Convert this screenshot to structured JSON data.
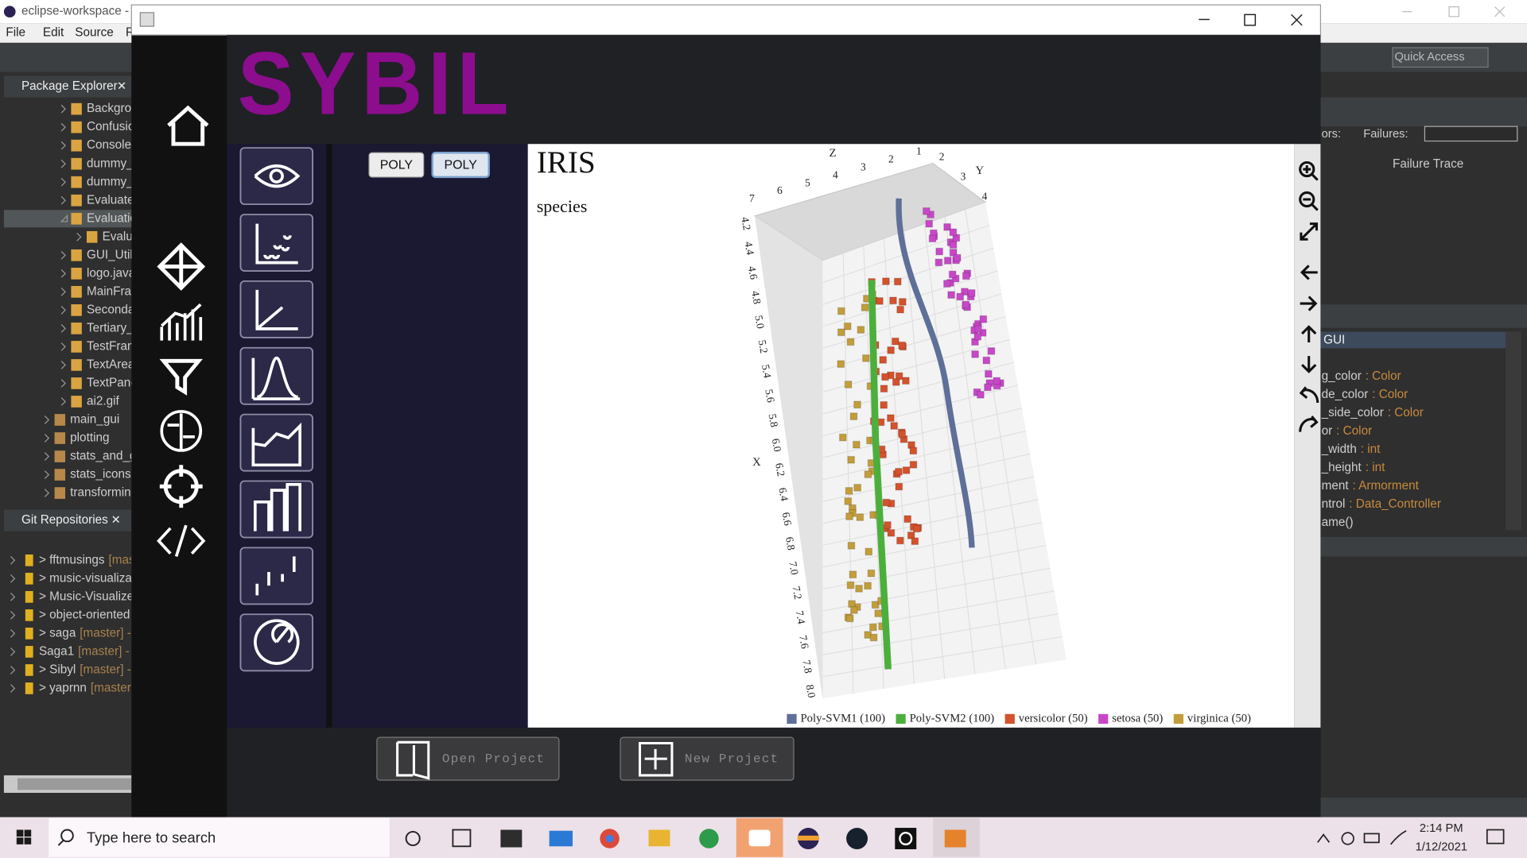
{
  "eclipse": {
    "title": "eclipse-workspace -",
    "menu": [
      "File",
      "Edit",
      "Source",
      "Ref"
    ],
    "package_explorer": {
      "title": "Package Explorer",
      "files": [
        {
          "name": "Backgro"
        },
        {
          "name": "Confusio"
        },
        {
          "name": "Console."
        },
        {
          "name": "dummy_"
        },
        {
          "name": "dummy_"
        },
        {
          "name": "Evaluate"
        },
        {
          "name": "Evaluatio",
          "children": [
            "Evalu"
          ]
        },
        {
          "name": "GUI_Util."
        },
        {
          "name": "logo.java"
        },
        {
          "name": "MainFran"
        },
        {
          "name": "Seconda"
        },
        {
          "name": "Tertiary_"
        },
        {
          "name": "TestFram"
        },
        {
          "name": "TextArea"
        },
        {
          "name": "TextPane"
        },
        {
          "name": "ai2.gif"
        }
      ],
      "packages": [
        "main_gui",
        "plotting",
        "stats_and_g",
        "stats_icons",
        "transformin"
      ]
    },
    "git": {
      "title": "Git Repositories",
      "repos": [
        {
          "name": "> fftmusings",
          "branch": "[mas"
        },
        {
          "name": "> music-visualiza",
          "branch": ""
        },
        {
          "name": "> Music-Visualize",
          "branch": ""
        },
        {
          "name": "> object-oriented",
          "branch": ""
        },
        {
          "name": "> saga",
          "branch": "[master] -"
        },
        {
          "name": "Saga1",
          "branch": "[master] -"
        },
        {
          "name": "> Sibyl",
          "branch": "[master] -"
        },
        {
          "name": "> yaprnn",
          "branch": "[master"
        }
      ]
    },
    "quick_access": "Quick Access",
    "junit": {
      "errors": "ors:",
      "failures": "Failures:",
      "trace": "Failure Trace"
    },
    "outline": {
      "title": "GUI",
      "items": [
        {
          "name": "g_color",
          "type": ": Color"
        },
        {
          "name": "de_color",
          "type": ": Color"
        },
        {
          "name": "_side_color",
          "type": ": Color"
        },
        {
          "name": "or",
          "type": ": Color"
        },
        {
          "name": "_width",
          "type": ": int"
        },
        {
          "name": "_height",
          "type": ": int"
        },
        {
          "name": "ment",
          "type": ": Armorment"
        },
        {
          "name": "ntrol",
          "type": ": Data_Controller"
        },
        {
          "name": "ame()",
          "type": ""
        }
      ]
    }
  },
  "app": {
    "logo": "SYBIL",
    "buttons": [
      "POLY",
      "POLY"
    ],
    "plot": {
      "title": "IRIS",
      "subtitle": "species",
      "x_label": "X",
      "y_label": "Y",
      "z_label": "Z",
      "x_ticks": [
        "4.2",
        "4.4",
        "4.6",
        "4.8",
        "5.0",
        "5.2",
        "5.4",
        "5.6",
        "5.8",
        "6.0",
        "6.2",
        "6.4",
        "6.6",
        "6.8",
        "7.0",
        "7.2",
        "7.4",
        "7.6",
        "7.8",
        "8.0"
      ],
      "z_ticks": [
        "7",
        "6",
        "5",
        "4",
        "3",
        "2",
        "1"
      ],
      "y_ticks": [
        "2",
        "3",
        "4"
      ],
      "legend": [
        {
          "name": "Poly-SVM1 (100)",
          "color": "#5e6f99"
        },
        {
          "name": "Poly-SVM2 (100)",
          "color": "#4caf3c"
        },
        {
          "name": "versicolor (50)",
          "color": "#d4522c"
        },
        {
          "name": "setosa (50)",
          "color": "#c847c8"
        },
        {
          "name": "virginica (50)",
          "color": "#c29d3a"
        }
      ]
    },
    "open_project": "Open Project",
    "new_project": "New Project"
  },
  "taskbar": {
    "search": "Type here to search",
    "time": "2:14 PM",
    "date": "1/12/2021"
  }
}
